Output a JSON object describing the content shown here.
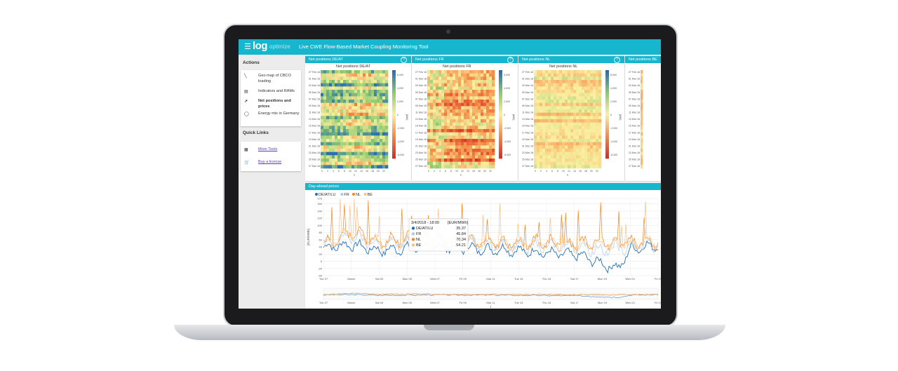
{
  "app": {
    "logo_main": "log",
    "logo_sub": "optimize",
    "title": "Live CWE Flow-Based Market Coupling Monitoring Tool"
  },
  "sidebar": {
    "actions_heading": "Actions",
    "actions": [
      {
        "label": "Geo map of CBCO loading",
        "icon": "trend-line-icon"
      },
      {
        "label": "Indicators and RAMs",
        "icon": "bar-chart-icon"
      },
      {
        "label": "Net positions and prices",
        "icon": "trending-up-icon"
      },
      {
        "label": "Energy mix in Germany",
        "icon": "donut-icon"
      }
    ],
    "quick_links_heading": "Quick Links",
    "links": [
      {
        "label": "More Tools",
        "icon": "grid-icon"
      },
      {
        "label": "Buy a license",
        "icon": "cart-icon"
      }
    ]
  },
  "heatmaps": [
    {
      "header": "Net positions DE/AT",
      "title": "Net positions DE/AT",
      "scheme": "deat"
    },
    {
      "header": "Net positions FR",
      "title": "Net positions FR",
      "scheme": "fr"
    },
    {
      "header": "Net positions NL",
      "title": "Net positions NL",
      "scheme": "nl"
    },
    {
      "header": "Net positions BE",
      "title": "",
      "scheme": "be"
    }
  ],
  "heatmap_axes": {
    "y_labels": [
      "27 Feb 18",
      "01 Mar 18",
      "03 Mar 18",
      "05 Mar 18",
      "07 Mar 18",
      "09 Mar 18",
      "11 Mar 18",
      "13 Mar 18",
      "15 Mar 18",
      "17 Mar 18",
      "19 Mar 18",
      "21 Mar 18",
      "23 Mar 18",
      "25 Mar 18",
      "27 Mar 18"
    ],
    "x_labels": [
      "0",
      "2",
      "4",
      "6",
      "8",
      "10",
      "12",
      "14",
      "16",
      "18",
      "20",
      "22"
    ],
    "x_title": "t",
    "colorbar_labels": [
      "6,000",
      "4,000",
      "2,000",
      "0",
      "-2,000",
      "-4,000",
      "-6,000"
    ],
    "colorbar_unit": "[MW]"
  },
  "prices_panel": {
    "header": "Day-ahead prices",
    "legend": [
      {
        "name": "DE/AT/LU",
        "color": "#1f6fb4"
      },
      {
        "name": "FR",
        "color": "#a8c8ea"
      },
      {
        "name": "NL",
        "color": "#f2861c"
      },
      {
        "name": "BE",
        "color": "#f7c08a"
      }
    ],
    "tooltip": {
      "title": "3/4/2018 - 18:00",
      "unit": "[EUR/MWh]",
      "rows": [
        {
          "name": "DE/AT/LU",
          "value": "35.37",
          "color": "#1f6fb4"
        },
        {
          "name": "FR",
          "value": "45.84",
          "color": "#a8c8ea"
        },
        {
          "name": "NL",
          "value": "70.34",
          "color": "#f2861c"
        },
        {
          "name": "BE",
          "value": "54.21",
          "color": "#f7c08a"
        }
      ]
    },
    "x_title": "t"
  },
  "chart_data": {
    "type": "line",
    "title": "Day-ahead prices",
    "ylabel": "[EUR/MWh]",
    "xlabel": "",
    "ylim": [
      -40,
      175
    ],
    "y_ticks": [
      -40,
      -20,
      0,
      20,
      40,
      60,
      80,
      100,
      120,
      140,
      160,
      175
    ],
    "x_ticks": [
      "Tue 27",
      "March",
      "Sat 03",
      "Mon 05",
      "Wed 07",
      "Fri 09",
      "Mar 11",
      "Tue 13",
      "Thu 15",
      "Sat 17",
      "Mon 19",
      "Wed 21",
      "Fri 23"
    ],
    "legend_position": "top-left",
    "series": [
      {
        "name": "DE/AT/LU",
        "values": [
          38,
          42,
          46,
          40,
          30,
          32,
          35,
          37,
          40,
          41,
          36,
          38,
          32,
          34,
          30,
          28,
          25,
          22,
          20,
          18,
          5,
          -10,
          -20,
          35,
          40,
          45
        ]
      },
      {
        "name": "FR",
        "values": [
          45,
          55,
          70,
          60,
          45,
          48,
          50,
          46,
          52,
          55,
          50,
          56,
          48,
          46,
          45,
          44,
          42,
          40,
          44,
          42,
          35,
          30,
          38,
          42,
          46,
          44
        ]
      },
      {
        "name": "NL",
        "values": [
          48,
          60,
          85,
          70,
          55,
          58,
          60,
          70,
          62,
          60,
          54,
          58,
          50,
          52,
          48,
          50,
          55,
          52,
          50,
          48,
          52,
          50,
          55,
          50,
          54,
          52
        ]
      },
      {
        "name": "BE",
        "values": [
          46,
          58,
          80,
          66,
          52,
          55,
          58,
          54,
          56,
          58,
          52,
          56,
          49,
          50,
          47,
          48,
          52,
          50,
          48,
          46,
          48,
          46,
          50,
          48,
          52,
          50
        ]
      }
    ]
  }
}
